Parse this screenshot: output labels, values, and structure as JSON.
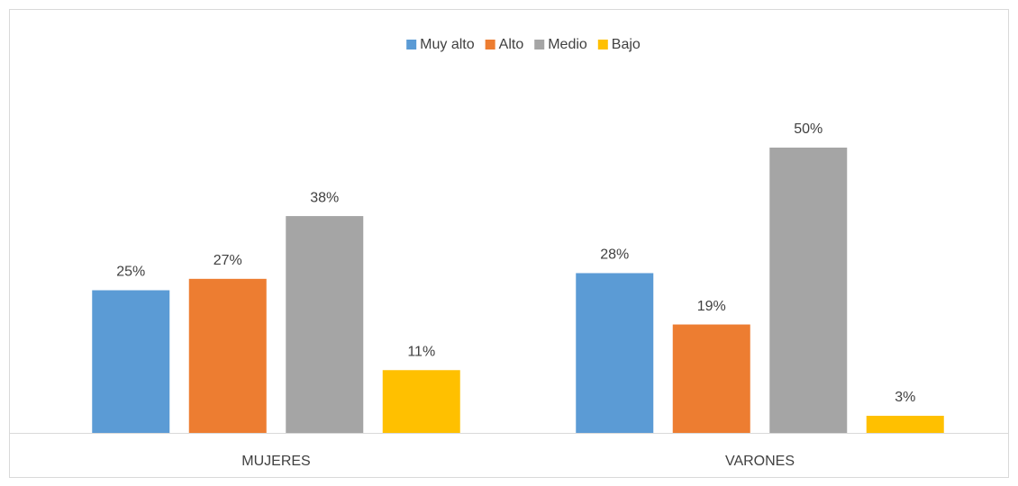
{
  "chart_data": {
    "type": "bar",
    "categories": [
      "MUJERES",
      "VARONES"
    ],
    "series": [
      {
        "name": "Muy alto",
        "color": "#5b9bd5",
        "values": [
          25,
          28
        ],
        "value_labels": [
          "25%",
          "28%"
        ]
      },
      {
        "name": "Alto",
        "color": "#ed7d31",
        "values": [
          27,
          19
        ],
        "value_labels": [
          "27%",
          "19%"
        ]
      },
      {
        "name": "Medio",
        "color": "#a5a5a5",
        "values": [
          38,
          50
        ],
        "value_labels": [
          "38%",
          "50%"
        ]
      },
      {
        "name": "Bajo",
        "color": "#ffc000",
        "values": [
          11,
          3
        ],
        "value_labels": [
          "11%",
          "3%"
        ]
      }
    ],
    "ylim": [
      0,
      75
    ],
    "legend": "top"
  }
}
